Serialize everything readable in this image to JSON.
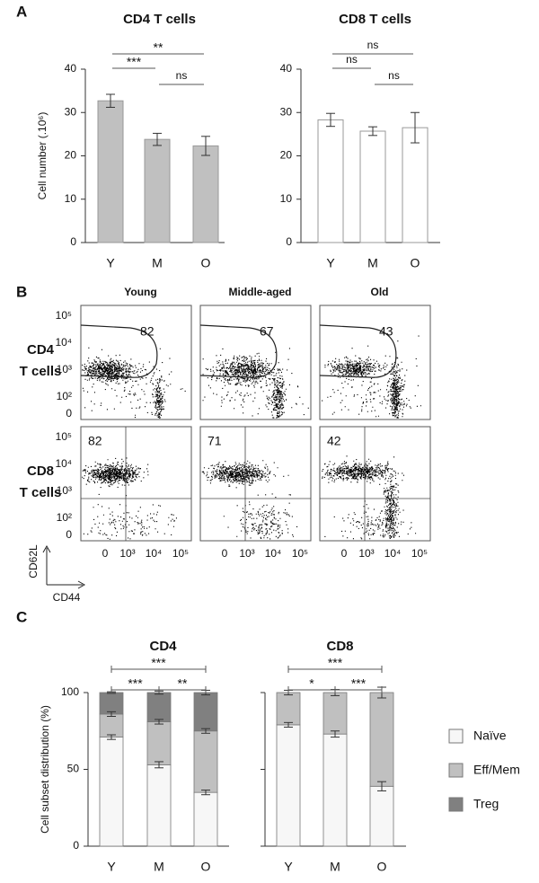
{
  "panel_labels": [
    "A",
    "B",
    "C"
  ],
  "chart_data": [
    {
      "type": "bar",
      "title": "CD4 T cells",
      "y_label": "Cell number (.10⁶)",
      "categories": [
        "Y",
        "M",
        "O"
      ],
      "values": [
        32.7,
        23.8,
        22.3
      ],
      "errors": [
        1.5,
        1.4,
        2.2
      ],
      "color": "#c0c0c0",
      "ylim": [
        0,
        40
      ],
      "yticks": [
        0,
        10,
        20,
        30,
        40
      ],
      "significance": [
        {
          "between": [
            "Y",
            "O"
          ],
          "label": "**"
        },
        {
          "between": [
            "Y",
            "M"
          ],
          "label": "***"
        },
        {
          "between": [
            "M",
            "O"
          ],
          "label": "ns"
        }
      ]
    },
    {
      "type": "bar",
      "title": "CD8 T cells",
      "categories": [
        "Y",
        "M",
        "O"
      ],
      "values": [
        28.3,
        25.7,
        26.5
      ],
      "errors": [
        1.5,
        1.0,
        3.5
      ],
      "color": "#ffffff",
      "ylim": [
        0,
        40
      ],
      "yticks": [
        0,
        10,
        20,
        30,
        40
      ],
      "significance": [
        {
          "between": [
            "Y",
            "O"
          ],
          "label": "ns"
        },
        {
          "between": [
            "Y",
            "M"
          ],
          "label": "ns"
        },
        {
          "between": [
            "M",
            "O"
          ],
          "label": "ns"
        }
      ]
    },
    {
      "type": "stacked-bar",
      "title": "CD4",
      "y_label": "Cell subset distribution (%)",
      "categories": [
        "Y",
        "M",
        "O"
      ],
      "ylim": [
        0,
        100
      ],
      "yticks": [
        0,
        50,
        100
      ],
      "legend": "right",
      "series": [
        {
          "name": "Naïve",
          "color": "#f7f7f7",
          "values": [
            71,
            53,
            35
          ],
          "errors": [
            1.5,
            2,
            1.5
          ]
        },
        {
          "name": "Eff/Mem",
          "color": "#c0c0c0",
          "values": [
            15,
            28,
            40
          ],
          "errors": [
            1.5,
            1.5,
            1.5
          ]
        },
        {
          "name": "Treg",
          "color": "#808080",
          "values": [
            14,
            19,
            25
          ],
          "errors": [
            0.5,
            1,
            1.5
          ]
        }
      ],
      "significance": [
        {
          "between": [
            "Y",
            "O"
          ],
          "label": "***"
        },
        {
          "between": [
            "Y",
            "M"
          ],
          "label": "***"
        },
        {
          "between": [
            "M",
            "O"
          ],
          "label": "**"
        }
      ]
    },
    {
      "type": "stacked-bar",
      "title": "CD8",
      "categories": [
        "Y",
        "M",
        "O"
      ],
      "ylim": [
        0,
        100
      ],
      "yticks": [
        0,
        50,
        100
      ],
      "show_tick_labels": false,
      "series": [
        {
          "name": "Naïve",
          "color": "#f7f7f7",
          "values": [
            79,
            73,
            39
          ],
          "errors": [
            1.5,
            2,
            3
          ]
        },
        {
          "name": "Eff/Mem",
          "color": "#c0c0c0",
          "values": [
            21,
            27,
            61
          ],
          "errors": [
            1.5,
            2,
            3.5
          ]
        }
      ],
      "significance": [
        {
          "between": [
            "Y",
            "O"
          ],
          "label": "***"
        },
        {
          "between": [
            "Y",
            "M"
          ],
          "label": "*"
        },
        {
          "between": [
            "M",
            "O"
          ],
          "label": "***"
        }
      ]
    }
  ],
  "flow": {
    "columns": [
      "Young",
      "Middle-aged",
      "Old"
    ],
    "rows": [
      [
        "CD4",
        "T cells"
      ],
      [
        "CD8",
        "T cells"
      ]
    ],
    "percentages": [
      [
        82,
        67,
        43
      ],
      [
        82,
        71,
        42
      ]
    ],
    "yticks": [
      "10⁵",
      "10⁴",
      "10³",
      "10²",
      "0"
    ],
    "xticks": [
      "0",
      "10³",
      "10⁴",
      "10⁵"
    ],
    "y_axis": "CD62L",
    "x_axis": "CD44"
  }
}
